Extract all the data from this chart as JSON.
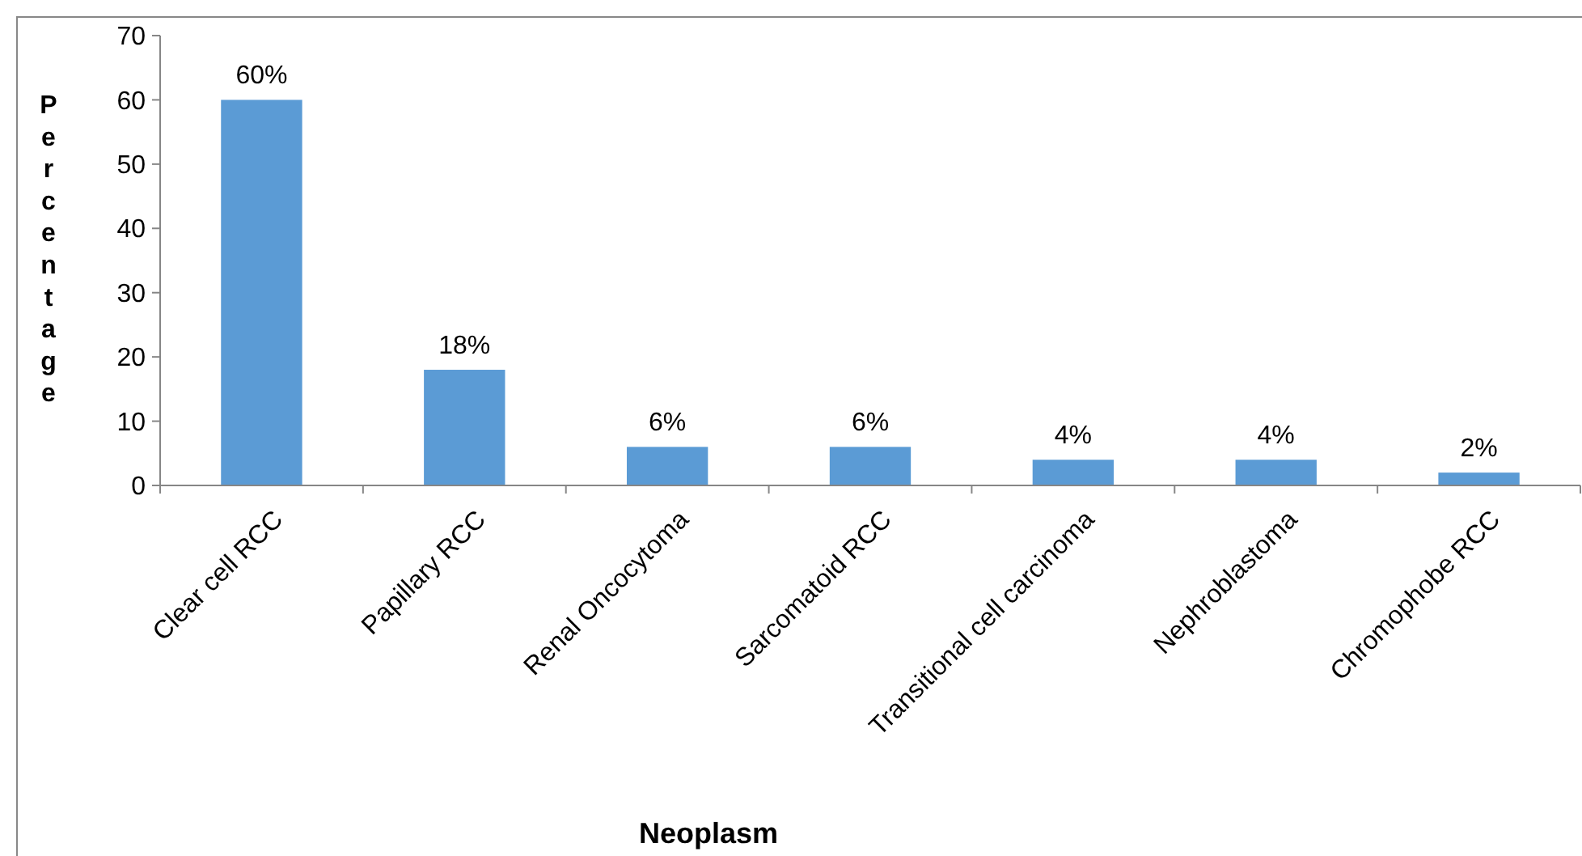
{
  "chart_data": {
    "type": "bar",
    "xlabel": "Neoplasm",
    "ylabel": "Percentage",
    "categories": [
      "Clear cell RCC",
      "Papillary RCC",
      "Renal Oncocytoma",
      "Sarcomatoid RCC",
      "Transitional cell carcinoma",
      "Nephroblastoma",
      "Chromophobe RCC"
    ],
    "values": [
      60,
      18,
      6,
      6,
      4,
      4,
      2
    ],
    "value_labels": [
      "60%",
      "18%",
      "6%",
      "6%",
      "4%",
      "4%",
      "2%"
    ],
    "color": "#5b9bd5",
    "ylim": [
      0,
      70
    ],
    "yticks": [
      0,
      10,
      20,
      30,
      40,
      50,
      60,
      70
    ],
    "grid": false
  }
}
